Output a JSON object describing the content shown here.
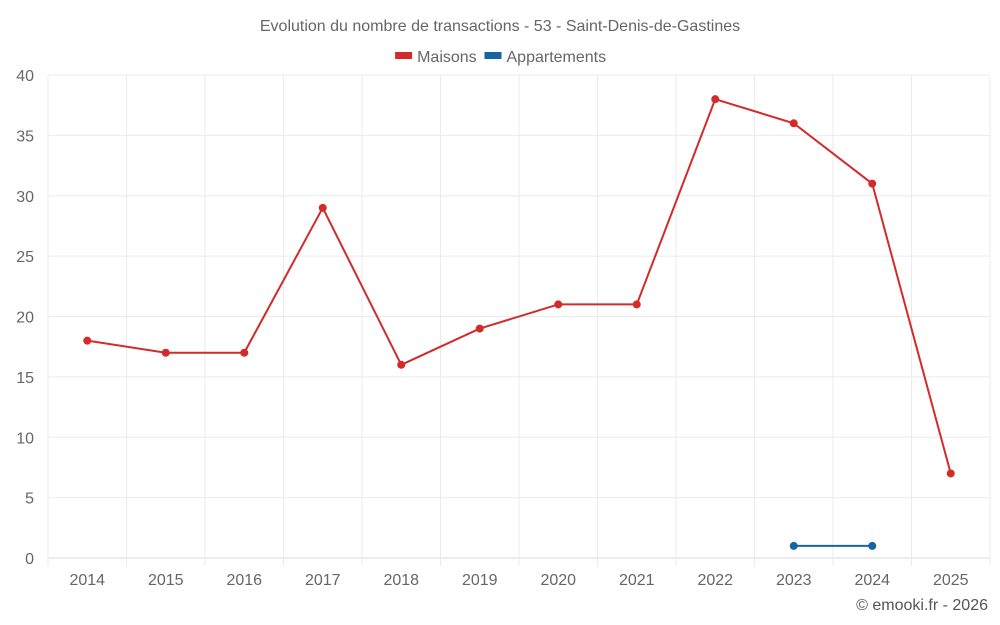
{
  "chart_data": {
    "type": "line",
    "title": "Evolution du nombre de transactions - 53 - Saint-Denis-de-Gastines",
    "xlabel": "",
    "ylabel": "",
    "categories": [
      "2014",
      "2015",
      "2016",
      "2017",
      "2018",
      "2019",
      "2020",
      "2021",
      "2022",
      "2023",
      "2024",
      "2025"
    ],
    "ylim": [
      0,
      40
    ],
    "yticks": [
      0,
      5,
      10,
      15,
      20,
      25,
      30,
      35,
      40
    ],
    "grid": true,
    "legend_position": "top-center",
    "series": [
      {
        "name": "Maisons",
        "color": "#d32a2a",
        "values": [
          18,
          17,
          17,
          29,
          16,
          19,
          21,
          21,
          38,
          36,
          31,
          7
        ]
      },
      {
        "name": "Appartements",
        "color": "#1565a0",
        "values": [
          null,
          null,
          null,
          null,
          null,
          null,
          null,
          null,
          null,
          1,
          1,
          null
        ]
      }
    ]
  },
  "credit": "© emooki.fr - 2026"
}
